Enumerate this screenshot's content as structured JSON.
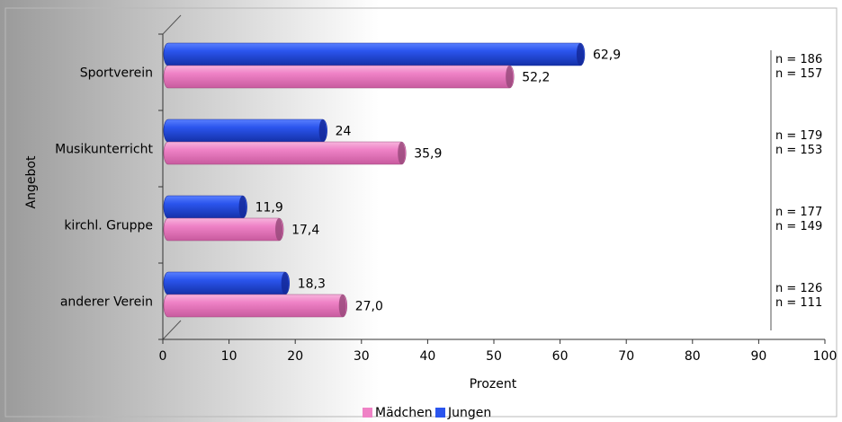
{
  "chart_data": {
    "type": "bar",
    "orientation": "horizontal",
    "xlabel": "Prozent",
    "ylabel": "Angebot",
    "xlim": [
      0,
      100
    ],
    "xticks": [
      "0",
      "10",
      "20",
      "30",
      "40",
      "50",
      "60",
      "70",
      "80",
      "90",
      "100"
    ],
    "categories": [
      "Sportverein",
      "Musikunterricht",
      "kirchl. Gruppe",
      "anderer Verein"
    ],
    "series": [
      {
        "name": "Jungen",
        "color": "#2b55ee",
        "values": [
          62.9,
          24,
          11.9,
          18.3
        ],
        "labels": [
          "62,9",
          "24",
          "11,9",
          "18,3"
        ],
        "n": [
          "n = 186",
          "n = 179",
          "n = 177",
          "n = 126"
        ]
      },
      {
        "name": "Mädchen",
        "color": "#ef82c6",
        "values": [
          52.2,
          35.9,
          17.4,
          27.0
        ],
        "labels": [
          "52,2",
          "35,9",
          "17,4",
          "27,0"
        ],
        "n": [
          "n = 157",
          "n = 153",
          "n = 149",
          "n = 111"
        ]
      }
    ],
    "legend_position": "bottom",
    "grid": false
  }
}
